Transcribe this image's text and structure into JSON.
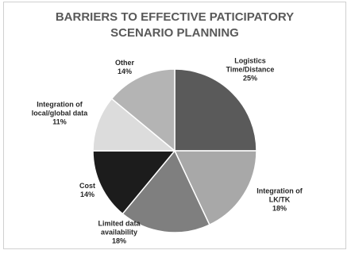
{
  "chart_data": {
    "type": "pie",
    "title": "BARRIERS TO EFFECTIVE PATICIPATORY SCENARIO PLANNING",
    "categories": [
      "Logistics Time/Distance",
      "Integration of LK/TK",
      "Limited data availability",
      "Cost",
      "Integration of local/global data",
      "Other"
    ],
    "values": [
      25,
      18,
      18,
      14,
      11,
      14
    ],
    "value_labels": [
      "25%",
      "18%",
      "18%",
      "14%",
      "11%",
      "14%"
    ],
    "colors": [
      "#5a5a5a",
      "#a8a8a8",
      "#7f7f7f",
      "#1c1c1c",
      "#dcdcdc",
      "#b4b4b4"
    ]
  }
}
